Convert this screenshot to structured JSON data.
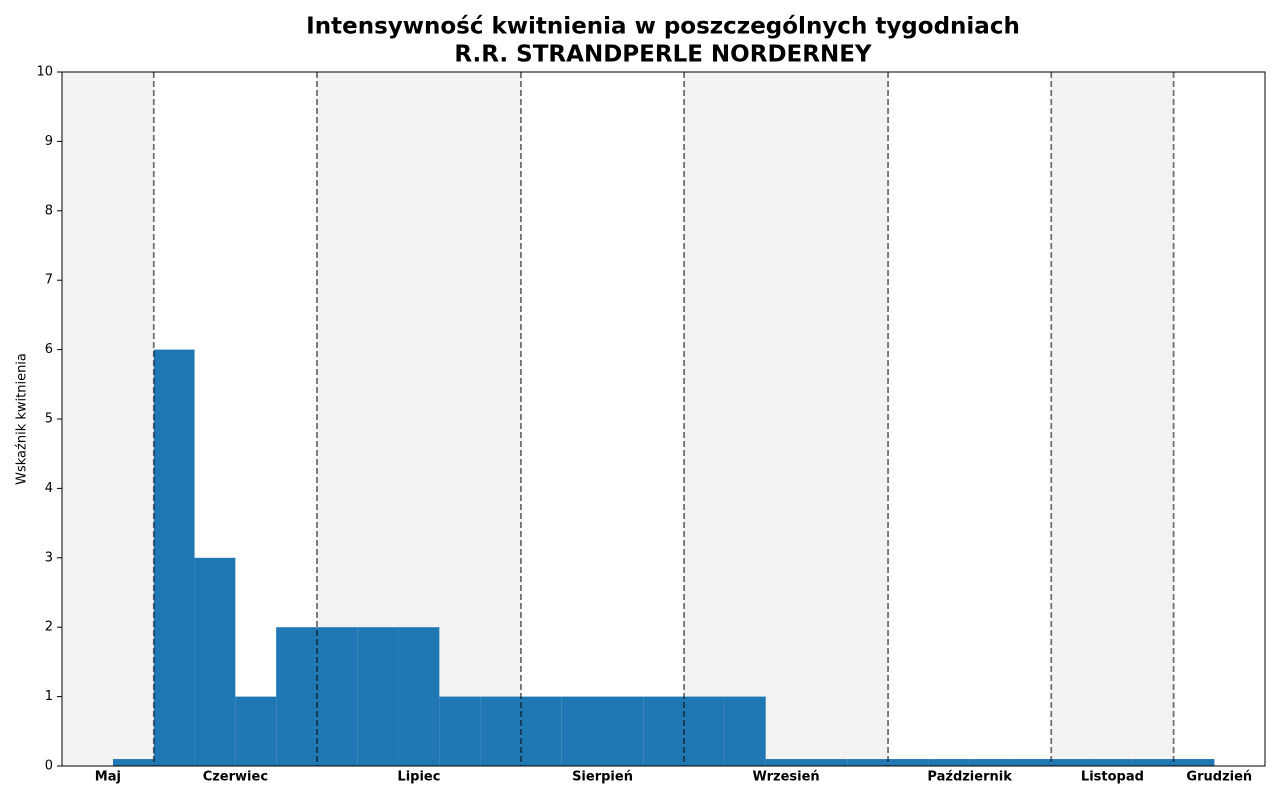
{
  "chart_data": {
    "type": "histogram",
    "title": "Intensywność kwitnienia w poszczególnych tygodniach",
    "subtitle": "R.R. STRANDPERLE NORDERNEY",
    "y_label": "Wskaźnik kwitnienia",
    "bins": [
      0,
      1,
      2,
      3,
      4,
      5,
      6,
      7,
      8,
      9,
      10,
      11,
      12,
      13,
      14,
      15,
      16,
      17,
      18,
      19,
      20,
      21,
      22,
      23,
      24,
      25,
      26,
      27
    ],
    "values": [
      0.1,
      6,
      3,
      1,
      2,
      2,
      2,
      2,
      1,
      1,
      1,
      1,
      1,
      1,
      1,
      1,
      0.1,
      0.1,
      0.1,
      0.1,
      0.1,
      0.1,
      0.1,
      0.1,
      0.1,
      0.1,
      0.1
    ],
    "color": "#1f77b4",
    "months": [
      "Maj",
      "Czerwiec",
      "Lipiec",
      "Sierpień",
      "Wrzesień",
      "Październik",
      "Listopad",
      "Grudzień"
    ],
    "month_edges": [
      1,
      5,
      10,
      14,
      19,
      23,
      26
    ],
    "xlim": [
      -1.25,
      28.24
    ],
    "ylim": [
      0,
      10
    ],
    "yticks": [
      0,
      1,
      2,
      3,
      4,
      5,
      6,
      7,
      8,
      9,
      10
    ]
  }
}
